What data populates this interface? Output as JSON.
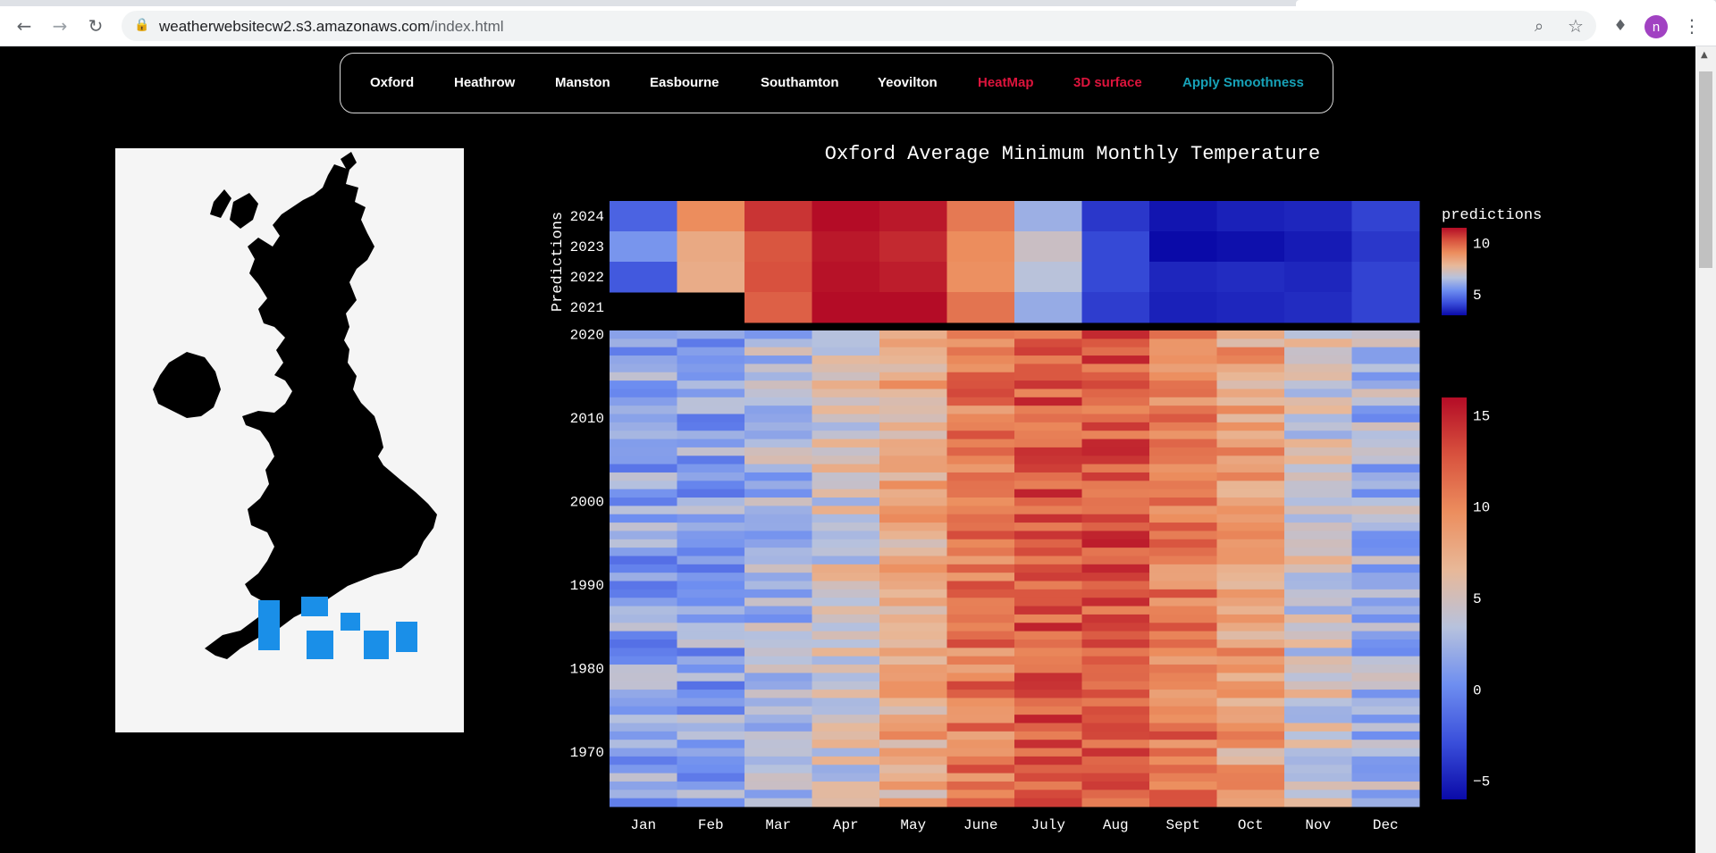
{
  "browser": {
    "url_host": "weatherwebsitecw2.s3.amazonaws.com",
    "url_path": "/index.html",
    "profile_initial": "n"
  },
  "nav": {
    "items": [
      {
        "label": "Oxford",
        "color": "#ffffff"
      },
      {
        "label": "Heathrow",
        "color": "#ffffff"
      },
      {
        "label": "Manston",
        "color": "#ffffff"
      },
      {
        "label": "Easbourne",
        "color": "#ffffff"
      },
      {
        "label": "Southamton",
        "color": "#ffffff"
      },
      {
        "label": "Yeovilton",
        "color": "#ffffff"
      },
      {
        "label": "HeatMap",
        "color": "#dc143c"
      },
      {
        "label": "3D surface",
        "color": "#dc143c"
      },
      {
        "label": "Apply Smoothness",
        "color": "#17a2b8"
      }
    ]
  },
  "colors": {
    "station_markers": "#1a8fe8",
    "map_land": "#000000",
    "map_background": "#f5f5f5"
  },
  "chart_data": {
    "type": "heatmap",
    "title": "Oxford Average Minimum Monthly Temperature",
    "colorscale": [
      "#0a0aa8",
      "#3a4fdb",
      "#6e8ef0",
      "#b7c2dd",
      "#e8b898",
      "#ec8e5e",
      "#d8523e",
      "#b40c26"
    ],
    "months": [
      "Jan",
      "Feb",
      "Mar",
      "Apr",
      "May",
      "June",
      "July",
      "Aug",
      "Sept",
      "Oct",
      "Nov",
      "Dec"
    ],
    "predictions": {
      "ylabel": "Predictions",
      "colorbar_title": "predictions",
      "colorbar_ticks": [
        "10",
        "5"
      ],
      "range": [
        3,
        11.5
      ],
      "years": [
        "2024",
        "2023",
        "2022",
        "2021"
      ],
      "values": [
        [
          4.6,
          9.1,
          10.8,
          11.6,
          11.3,
          9.5,
          6.2,
          3.8,
          3.2,
          3.4,
          3.5,
          4.0
        ],
        [
          5.6,
          8.3,
          10.2,
          11.3,
          11.0,
          9.1,
          7.1,
          4.1,
          2.8,
          3.1,
          3.3,
          3.8
        ],
        [
          4.4,
          8.2,
          10.3,
          11.4,
          11.2,
          9.0,
          6.7,
          4.1,
          3.5,
          3.6,
          3.5,
          4.0
        ],
        [
          null,
          null,
          10.0,
          11.5,
          11.7,
          9.6,
          6.1,
          3.9,
          3.4,
          3.5,
          3.6,
          4.0
        ]
      ]
    },
    "history": {
      "colorbar_ticks": [
        "15",
        "10",
        "5",
        "0",
        "−5"
      ],
      "range": [
        -6,
        16
      ],
      "y_ticks": [
        "2020",
        "2010",
        "2000",
        "1990",
        "1980",
        "1970"
      ],
      "year_range": [
        1964,
        2020
      ],
      "monthly_typical_min": [
        1.5,
        1.6,
        2.9,
        4.8,
        7.6,
        10.8,
        12.8,
        12.6,
        10.9,
        8.2,
        4.7,
        2.7
      ]
    }
  }
}
